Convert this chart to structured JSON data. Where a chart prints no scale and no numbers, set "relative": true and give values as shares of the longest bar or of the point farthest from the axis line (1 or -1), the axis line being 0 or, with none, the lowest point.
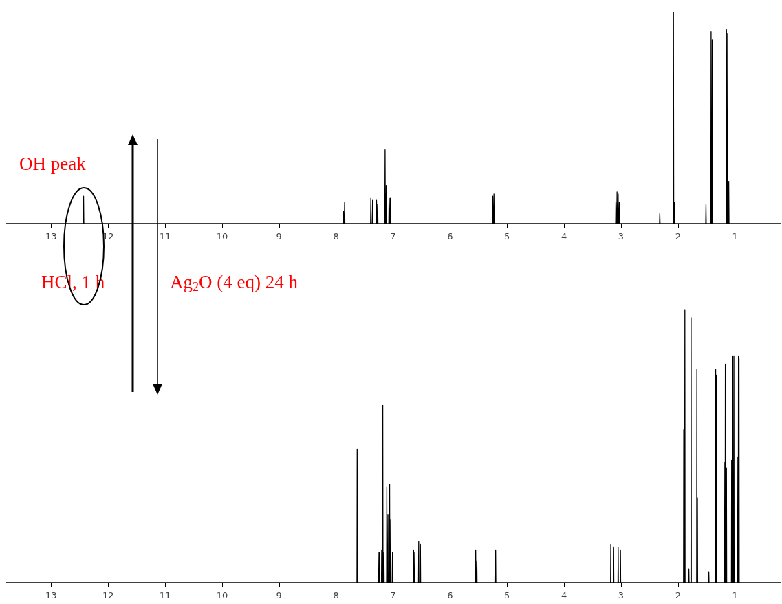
{
  "chart_data": [
    {
      "type": "line",
      "relative": true,
      "xlim": [
        13.8,
        0.2
      ],
      "xticks": [
        13,
        12,
        11,
        10,
        9,
        8,
        7,
        6,
        5,
        4,
        3,
        2,
        1
      ],
      "tick_labels": "x",
      "annotations": [
        "OH peak",
        "HCl, 1 h",
        "Ag$_{2}$O (4 eq) 24 h"
      ],
      "series": [
        {
          "color": "#000000",
          "x": [
            13.8,
            12.435,
            12.43,
            12.425,
            7.875,
            7.87,
            7.865,
            7.855,
            7.85,
            7.845,
            7.395,
            7.39,
            7.385,
            7.365,
            7.36,
            7.355,
            7.295,
            7.29,
            7.285,
            7.275,
            7.27,
            7.265,
            7.145,
            7.14,
            7.135,
            7.125,
            7.12,
            7.115,
            7.075,
            7.07,
            7.065,
            7.055,
            7.05,
            7.045,
            5.255,
            5.25,
            5.245,
            5.235,
            5.23,
            5.225,
            3.095,
            3.09,
            3.085,
            3.075,
            3.07,
            3.065,
            3.055,
            3.05,
            3.045,
            3.035,
            3.03,
            3.025,
            2.325,
            2.32,
            2.315,
            2.085,
            2.08,
            2.075,
            2.065,
            2.06,
            2.055,
            1.515,
            1.51,
            1.505,
            1.425,
            1.42,
            1.415,
            1.405,
            1.4,
            1.395,
            1.155,
            1.15,
            1.145,
            1.135,
            1.13,
            1.125,
            1.115,
            1.11,
            1.105,
            0.2
          ],
          "values": [
            0,
            0,
            0.13,
            0,
            0,
            0.06,
            0,
            0,
            0.1,
            0,
            0,
            0.12,
            0,
            0,
            0.11,
            0,
            0,
            0.11,
            0,
            0,
            0.09,
            0,
            0,
            0.35,
            0,
            0,
            0.18,
            0,
            0,
            0.12,
            0,
            0,
            0.12,
            0,
            0,
            0.13,
            0,
            0,
            0.14,
            0,
            0,
            0.1,
            0,
            0,
            0.15,
            0,
            0,
            0.14,
            0,
            0,
            0.1,
            0,
            0,
            0.05,
            0,
            0,
            1,
            0,
            0,
            0.1,
            0,
            0,
            0.09,
            0,
            0,
            0.91,
            0,
            0,
            0.87,
            0,
            0,
            0.92,
            0,
            0,
            0.9,
            0,
            0,
            0.2,
            0,
            0
          ]
        }
      ]
    },
    {
      "type": "line",
      "relative": true,
      "xlim": [
        13.8,
        0.2
      ],
      "xticks": [
        13,
        12,
        11,
        10,
        9,
        8,
        7,
        6,
        5,
        4,
        3,
        2,
        1
      ],
      "tick_labels": "x",
      "series": [
        {
          "color": "#000000",
          "x": [
            13.8,
            7.634,
            7.63,
            7.626,
            7.264,
            7.26,
            7.256,
            7.244,
            7.24,
            7.236,
            7.204,
            7.2,
            7.196,
            7.184,
            7.18,
            7.176,
            7.164,
            7.16,
            7.156,
            7.114,
            7.11,
            7.106,
            7.094,
            7.09,
            7.086,
            7.064,
            7.06,
            7.056,
            7.044,
            7.04,
            7.036,
            7.014,
            7.01,
            7.006,
            6.644,
            6.64,
            6.636,
            6.624,
            6.62,
            6.616,
            6.554,
            6.55,
            6.546,
            6.524,
            6.52,
            6.516,
            5.554,
            5.55,
            5.546,
            5.534,
            5.53,
            5.526,
            5.214,
            5.21,
            5.206,
            5.204,
            5.2,
            5.196,
            3.184,
            3.18,
            3.176,
            3.134,
            3.13,
            3.126,
            3.054,
            3.05,
            3.046,
            3.014,
            3.01,
            3.006,
            1.904,
            1.9,
            1.896,
            1.884,
            1.88,
            1.876,
            1.814,
            1.81,
            1.806,
            1.774,
            1.77,
            1.766,
            1.674,
            1.67,
            1.666,
            1.664,
            1.66,
            1.656,
            1.464,
            1.46,
            1.456,
            1.344,
            1.34,
            1.336,
            1.334,
            1.33,
            1.326,
            1.194,
            1.19,
            1.186,
            1.174,
            1.17,
            1.166,
            1.154,
            1.15,
            1.146,
            1.064,
            1.06,
            1.056,
            1.044,
            1.04,
            1.036,
            1.024,
            1.02,
            1.016,
            0.964,
            0.96,
            0.956,
            0.944,
            0.94,
            0.936,
            0.934,
            0.93,
            0.926,
            0.2
          ],
          "values": [
            0,
            0,
            0.49,
            0,
            0,
            0.11,
            0,
            0,
            0.11,
            0,
            0,
            0.12,
            0,
            0,
            0.65,
            0,
            0,
            0.11,
            0,
            0,
            0.35,
            0,
            0,
            0.25,
            0,
            0,
            0.36,
            0,
            0,
            0.23,
            0,
            0,
            0.11,
            0,
            0,
            0.12,
            0,
            0,
            0.11,
            0,
            0,
            0.15,
            0,
            0,
            0.14,
            0,
            0,
            0.12,
            0,
            0,
            0.08,
            0,
            0,
            0.07,
            0,
            0,
            0.12,
            0,
            0,
            0.14,
            0,
            0,
            0.13,
            0,
            0,
            0.13,
            0,
            0,
            0.12,
            0,
            0,
            0.56,
            0,
            0,
            1,
            0,
            0,
            0.05,
            0,
            0,
            0.97,
            0,
            0,
            0.78,
            0,
            0,
            0.31,
            0,
            0,
            0.04,
            0,
            0,
            0.78,
            0,
            0,
            0.76,
            0,
            0,
            0.44,
            0,
            0,
            0.8,
            0,
            0,
            0.42,
            0,
            0,
            0.45,
            0,
            0,
            0.83,
            0,
            0,
            0.83,
            0,
            0,
            0.46,
            0,
            0,
            0.83,
            0,
            0,
            0.82,
            0,
            0
          ]
        }
      ]
    }
  ]
}
